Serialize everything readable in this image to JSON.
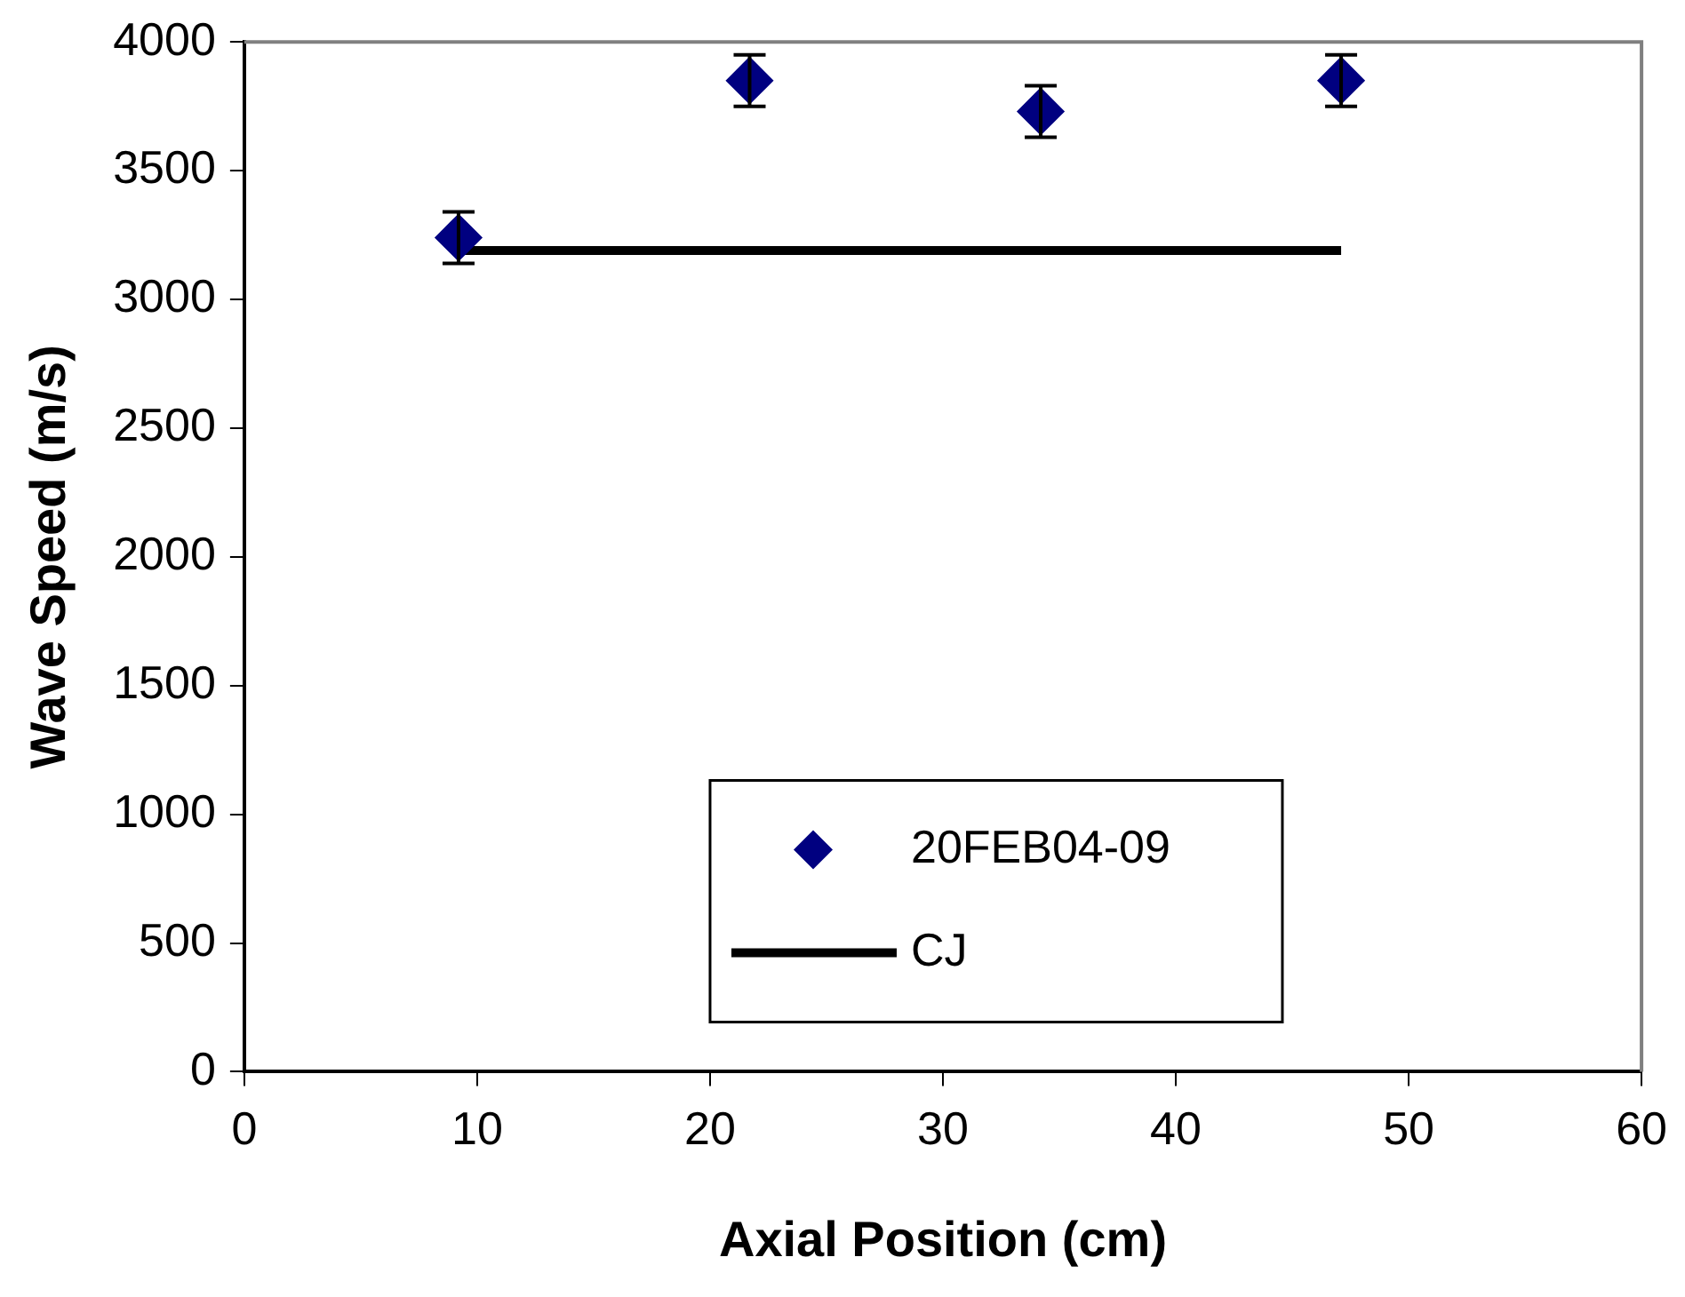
{
  "chart_data": {
    "type": "scatter",
    "xlabel": "Axial Position (cm)",
    "ylabel": "Wave Speed (m/s)",
    "series": [
      {
        "name": "20FEB04-09",
        "type": "scatter",
        "color": "#000080",
        "x": [
          9.2,
          21.7,
          34.2,
          47.1
        ],
        "values": [
          3240,
          3850,
          3730,
          3850
        ],
        "errors": [
          100,
          100,
          100,
          100
        ],
        "marker": "diamond"
      },
      {
        "name": "CJ",
        "type": "line",
        "color": "#000000",
        "x": [
          9.2,
          47.1
        ],
        "values": [
          3190,
          3190
        ],
        "marker": "none",
        "line_style": "solid"
      }
    ],
    "xlim": [
      0,
      60
    ],
    "xticks": [
      0,
      10,
      20,
      30,
      40,
      50,
      60
    ],
    "ylim": [
      0,
      4000
    ],
    "yticks": [
      0,
      500,
      1000,
      1500,
      2000,
      2500,
      3000,
      3500,
      4000
    ],
    "grid": false,
    "legend": "bottom"
  }
}
